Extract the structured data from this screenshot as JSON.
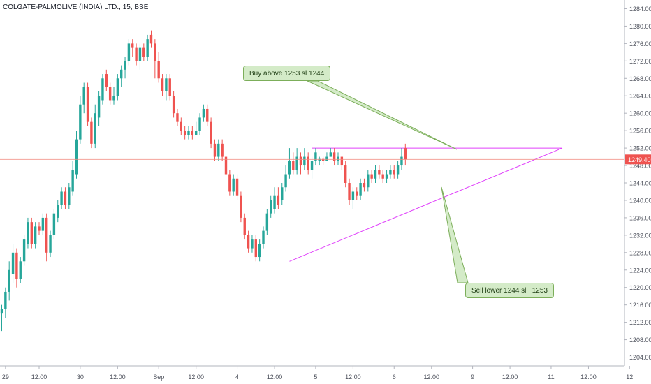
{
  "header": {
    "symbol_title": "COLGATE-PALMOLIVE (INDIA) LTD., 15, BSE"
  },
  "colors": {
    "up": "#26a69a",
    "down": "#ef5350",
    "trendline": "#e040fb",
    "note_bg": "#d4ebc8",
    "note_border": "#7cae5a",
    "price_line": "#f28b82"
  },
  "annotations": {
    "buy": "Buy above 1253 sl 1244",
    "sell": "Sell lower 1244 sl : 1253"
  },
  "chart_data": {
    "type": "candlestick",
    "y_axis": {
      "range": [
        1202,
        1286
      ],
      "ticks": [
        1204,
        1208,
        1212,
        1216,
        1220,
        1224,
        1228,
        1232,
        1236,
        1240,
        1244,
        1248,
        1252,
        1256,
        1260,
        1264,
        1268,
        1272,
        1276,
        1280,
        1284
      ]
    },
    "x_axis": {
      "tick_labels": [
        {
          "i": 1,
          "label": "29"
        },
        {
          "i": 10,
          "label": "12:00"
        },
        {
          "i": 21,
          "label": "30"
        },
        {
          "i": 31,
          "label": "12:00"
        },
        {
          "i": 42,
          "label": "Sep"
        },
        {
          "i": 52,
          "label": "12:00"
        },
        {
          "i": 63,
          "label": "4"
        },
        {
          "i": 73,
          "label": "12:00"
        },
        {
          "i": 84,
          "label": "5"
        },
        {
          "i": 94,
          "label": "12:00"
        },
        {
          "i": 105,
          "label": "6"
        },
        {
          "i": 115,
          "label": "12:00"
        },
        {
          "i": 126,
          "label": "9"
        },
        {
          "i": 136,
          "label": "12:00"
        },
        {
          "i": 147,
          "label": "11"
        },
        {
          "i": 157,
          "label": "12:00"
        },
        {
          "i": 168,
          "label": "12"
        }
      ]
    },
    "last_price": {
      "label": "1249.40",
      "value": 1249.4
    },
    "candles": [
      [
        1215,
        1214,
        1216,
        1210
      ],
      [
        1219,
        1215,
        1220,
        1213
      ],
      [
        1224,
        1219,
        1226,
        1217
      ],
      [
        1228,
        1223,
        1230,
        1221
      ],
      [
        1222,
        1228,
        1229,
        1220
      ],
      [
        1226,
        1222,
        1227,
        1221
      ],
      [
        1231,
        1226,
        1232,
        1225
      ],
      [
        1235,
        1230,
        1236,
        1229
      ],
      [
        1230,
        1235,
        1236,
        1229
      ],
      [
        1234,
        1230,
        1235,
        1229
      ],
      [
        1233,
        1234,
        1235,
        1232
      ],
      [
        1236,
        1233,
        1237,
        1232
      ],
      [
        1228,
        1236,
        1237,
        1226
      ],
      [
        1232,
        1228,
        1233,
        1227
      ],
      [
        1237,
        1232,
        1238,
        1231
      ],
      [
        1239,
        1236,
        1240,
        1235
      ],
      [
        1242,
        1239,
        1243,
        1238
      ],
      [
        1239,
        1242,
        1243,
        1238
      ],
      [
        1243,
        1239,
        1244,
        1238
      ],
      [
        1247,
        1242,
        1249,
        1241
      ],
      [
        1254,
        1246,
        1256,
        1245
      ],
      [
        1262,
        1254,
        1264,
        1253
      ],
      [
        1266,
        1262,
        1267,
        1260
      ],
      [
        1258,
        1266,
        1267,
        1257
      ],
      [
        1253,
        1258,
        1259,
        1252
      ],
      [
        1260,
        1253,
        1262,
        1252
      ],
      [
        1264,
        1259,
        1265,
        1257
      ],
      [
        1268,
        1263,
        1269,
        1262
      ],
      [
        1266,
        1269,
        1270,
        1265
      ],
      [
        1263,
        1266,
        1267,
        1262
      ],
      [
        1264,
        1263,
        1266,
        1262
      ],
      [
        1268,
        1264,
        1269,
        1263
      ],
      [
        1270,
        1268,
        1271,
        1266
      ],
      [
        1272,
        1270,
        1273,
        1268
      ],
      [
        1276,
        1272,
        1277,
        1271
      ],
      [
        1275,
        1276,
        1277,
        1273
      ],
      [
        1272,
        1275,
        1276,
        1271
      ],
      [
        1275,
        1272,
        1276,
        1270
      ],
      [
        1273,
        1275,
        1276,
        1272
      ],
      [
        1277,
        1273,
        1278,
        1272
      ],
      [
        1276,
        1278,
        1279,
        1275
      ],
      [
        1272,
        1276,
        1277,
        1268
      ],
      [
        1268,
        1272,
        1274,
        1267
      ],
      [
        1265,
        1268,
        1269,
        1264
      ],
      [
        1268,
        1265,
        1269,
        1263
      ],
      [
        1264,
        1268,
        1269,
        1263
      ],
      [
        1260,
        1264,
        1265,
        1259
      ],
      [
        1258,
        1260,
        1261,
        1257
      ],
      [
        1256,
        1258,
        1259,
        1255
      ],
      [
        1255,
        1256,
        1257,
        1254
      ],
      [
        1256,
        1255,
        1257,
        1254
      ],
      [
        1255,
        1256,
        1257,
        1254
      ],
      [
        1256,
        1255,
        1258,
        1255
      ],
      [
        1259,
        1256,
        1260,
        1255
      ],
      [
        1261,
        1259,
        1262,
        1258
      ],
      [
        1258,
        1261,
        1262,
        1257
      ],
      [
        1253,
        1258,
        1259,
        1252
      ],
      [
        1250,
        1253,
        1254,
        1249
      ],
      [
        1253,
        1250,
        1254,
        1249
      ],
      [
        1250,
        1253,
        1254,
        1249
      ],
      [
        1246,
        1250,
        1251,
        1245
      ],
      [
        1242,
        1246,
        1247,
        1241
      ],
      [
        1245,
        1242,
        1246,
        1241
      ],
      [
        1241,
        1245,
        1246,
        1240
      ],
      [
        1236,
        1241,
        1242,
        1235
      ],
      [
        1232,
        1236,
        1237,
        1231
      ],
      [
        1229,
        1232,
        1233,
        1228
      ],
      [
        1231,
        1229,
        1232,
        1228
      ],
      [
        1227,
        1231,
        1232,
        1226
      ],
      [
        1230,
        1227,
        1231,
        1226
      ],
      [
        1233,
        1230,
        1234,
        1229
      ],
      [
        1237,
        1233,
        1238,
        1232
      ],
      [
        1240,
        1237,
        1241,
        1236
      ],
      [
        1241,
        1238,
        1243,
        1237
      ],
      [
        1239,
        1241,
        1243,
        1238
      ],
      [
        1243,
        1240,
        1244,
        1239
      ],
      [
        1246,
        1243,
        1248,
        1242
      ],
      [
        1249,
        1246,
        1252,
        1245
      ],
      [
        1247,
        1249,
        1251,
        1246
      ],
      [
        1250,
        1247,
        1252,
        1246
      ],
      [
        1248,
        1250,
        1251,
        1246
      ],
      [
        1250,
        1248,
        1252,
        1247
      ],
      [
        1247,
        1250,
        1251,
        1246
      ],
      [
        1249,
        1247,
        1250,
        1245
      ],
      [
        1251,
        1249,
        1252,
        1248
      ],
      [
        1249.5,
        1249,
        1250,
        1248
      ],
      [
        1249,
        1249.5,
        1250,
        1248
      ],
      [
        1250,
        1249,
        1251,
        1249
      ],
      [
        1251,
        1250,
        1252,
        1250
      ],
      [
        1249,
        1251,
        1252,
        1248
      ],
      [
        1250,
        1249,
        1251,
        1248
      ],
      [
        1248,
        1250,
        1250,
        1247
      ],
      [
        1244,
        1248,
        1249,
        1243
      ],
      [
        1240,
        1244,
        1245,
        1239
      ],
      [
        1242,
        1240,
        1243,
        1238
      ],
      [
        1241,
        1242,
        1243,
        1240
      ],
      [
        1244,
        1241,
        1245,
        1240
      ],
      [
        1243,
        1244,
        1245,
        1242
      ],
      [
        1246,
        1243,
        1247,
        1242
      ],
      [
        1245,
        1246,
        1247,
        1244
      ],
      [
        1247,
        1245,
        1248,
        1244
      ],
      [
        1246,
        1247,
        1248,
        1245
      ],
      [
        1245,
        1246,
        1247,
        1244
      ],
      [
        1246,
        1245,
        1247,
        1244
      ],
      [
        1247,
        1246,
        1248,
        1245
      ],
      [
        1246,
        1247,
        1248,
        1245
      ],
      [
        1248,
        1246,
        1249,
        1245
      ],
      [
        1250,
        1248,
        1252,
        1247
      ],
      [
        1249.4,
        1252,
        1253,
        1248
      ]
    ],
    "trendlines": [
      {
        "from": [
          83,
          1252
        ],
        "to": [
          150,
          1252
        ]
      },
      {
        "from": [
          77,
          1226
        ],
        "to": [
          150,
          1252
        ]
      }
    ]
  }
}
